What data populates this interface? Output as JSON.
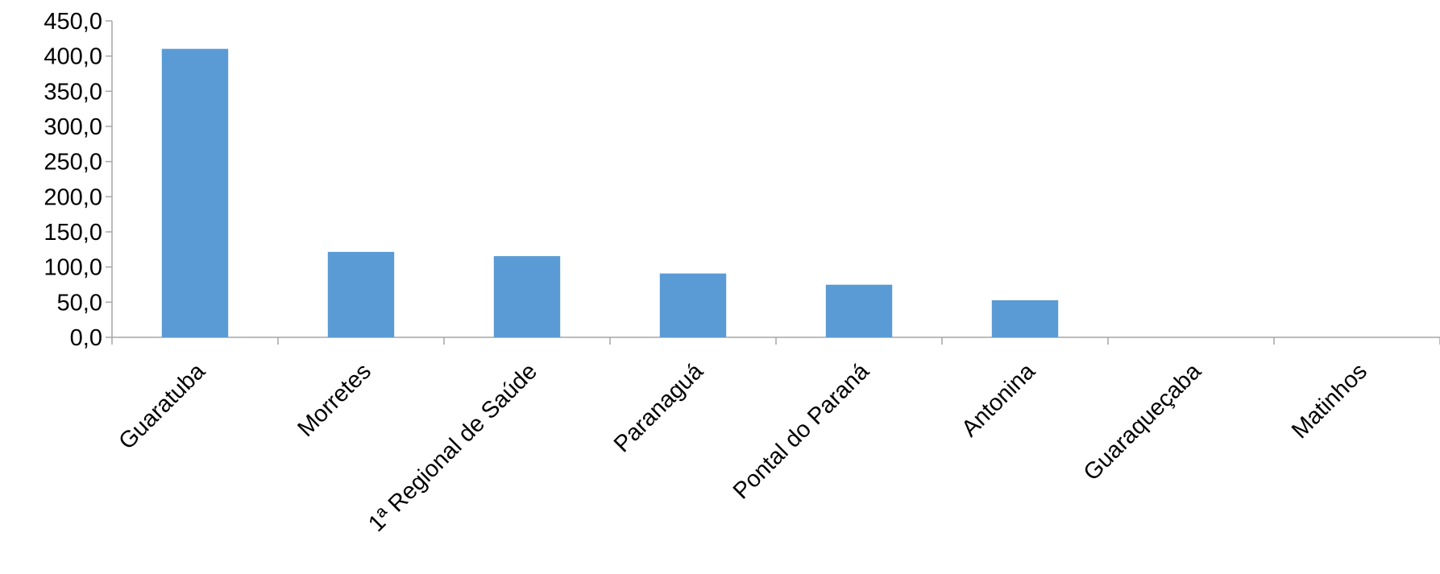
{
  "chart_data": {
    "type": "bar",
    "categories": [
      "Guaratuba",
      "Morretes",
      "1ª Regional de Saúde",
      "Paranaguá",
      "Pontal do Paraná",
      "Antonina",
      "Guaraqueçaba",
      "Matinhos"
    ],
    "values": [
      410.3,
      121.5,
      115.5,
      90.8,
      74.8,
      52.7,
      0,
      0
    ],
    "ylim": [
      0,
      450
    ],
    "yticks": [
      "0,0",
      "50,0",
      "100,0",
      "150,0",
      "200,0",
      "250,0",
      "300,0",
      "350,0",
      "400,0",
      "450,0"
    ],
    "title": "",
    "xlabel": "",
    "ylabel": "",
    "grid": false,
    "legend": "none",
    "bar_color": "#5b9bd5",
    "axis_color": "#a6a6a6"
  }
}
